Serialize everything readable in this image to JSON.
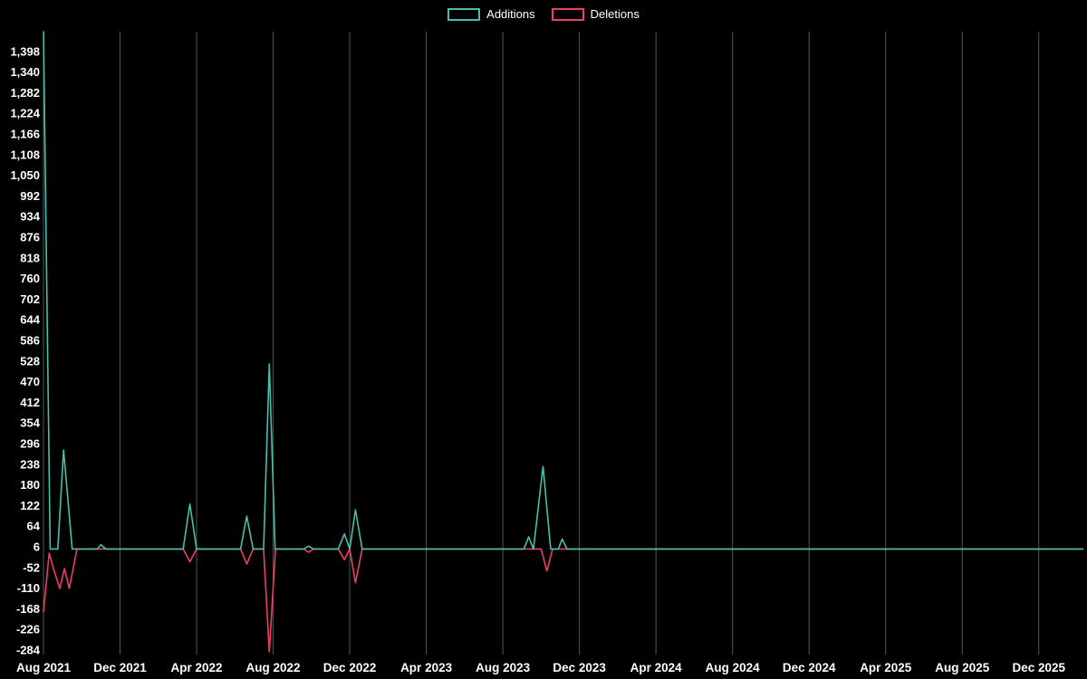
{
  "legend": {
    "additions_label": "Additions",
    "deletions_label": "Deletions"
  },
  "colors": {
    "background": "#000000",
    "text": "#ffffff",
    "gridline": "#4a5a57",
    "additions": "#46c0ad",
    "deletions": "#ee3f63"
  },
  "chart_data": {
    "type": "line",
    "title": "",
    "xlabel": "",
    "ylabel": "",
    "legend_position": "top-center",
    "grid": "vertical-only",
    "x_unit": "months since Aug 2021",
    "x_tick_months": [
      0,
      4,
      8,
      12,
      16,
      20,
      24,
      28,
      32,
      36,
      40,
      44,
      48,
      52
    ],
    "x_tick_labels": [
      "Aug 2021",
      "Dec 2021",
      "Apr 2022",
      "Aug 2022",
      "Dec 2022",
      "Apr 2023",
      "Aug 2023",
      "Dec 2023",
      "Apr 2024",
      "Aug 2024",
      "Dec 2024",
      "Apr 2025",
      "Aug 2025",
      "Dec 2025"
    ],
    "y_ticks": [
      1398,
      1340,
      1282,
      1224,
      1166,
      1108,
      1050,
      992,
      934,
      876,
      818,
      760,
      702,
      644,
      586,
      528,
      470,
      412,
      354,
      296,
      238,
      180,
      122,
      64,
      6,
      -52,
      -110,
      -168,
      -226,
      -284
    ],
    "ylim": [
      -295,
      1455
    ],
    "xlim": [
      0,
      54.3
    ],
    "series": [
      {
        "name": "Deletions",
        "color": "#ee3f63",
        "points": [
          [
            0,
            -177
          ],
          [
            0.3,
            -12
          ],
          [
            0.55,
            -60
          ],
          [
            0.85,
            -111
          ],
          [
            1.1,
            -55
          ],
          [
            1.35,
            -111
          ],
          [
            1.75,
            0
          ],
          [
            7.3,
            0
          ],
          [
            7.65,
            -36
          ],
          [
            8.0,
            0
          ],
          [
            10.3,
            0
          ],
          [
            10.62,
            -42
          ],
          [
            10.95,
            0
          ],
          [
            11.5,
            0
          ],
          [
            11.8,
            -292
          ],
          [
            12.12,
            0
          ],
          [
            13.6,
            0
          ],
          [
            13.85,
            -9
          ],
          [
            14.1,
            0
          ],
          [
            15.4,
            0
          ],
          [
            15.72,
            -30
          ],
          [
            16.0,
            0
          ],
          [
            16.3,
            -95
          ],
          [
            16.65,
            0
          ],
          [
            26.0,
            0
          ],
          [
            26.3,
            -62
          ],
          [
            26.6,
            0
          ],
          [
            54.3,
            0
          ]
        ]
      },
      {
        "name": "Additions",
        "color": "#46c0ad",
        "points": [
          [
            0,
            1455
          ],
          [
            0.35,
            0
          ],
          [
            0.75,
            0
          ],
          [
            1.05,
            278
          ],
          [
            1.5,
            0
          ],
          [
            2.8,
            0
          ],
          [
            3.0,
            12
          ],
          [
            3.25,
            0
          ],
          [
            7.3,
            0
          ],
          [
            7.65,
            126
          ],
          [
            8.0,
            0
          ],
          [
            10.3,
            0
          ],
          [
            10.62,
            92
          ],
          [
            10.95,
            0
          ],
          [
            11.5,
            0
          ],
          [
            11.8,
            520
          ],
          [
            12.1,
            0
          ],
          [
            13.6,
            0
          ],
          [
            13.85,
            8
          ],
          [
            14.1,
            0
          ],
          [
            15.4,
            0
          ],
          [
            15.72,
            42
          ],
          [
            16.0,
            0
          ],
          [
            16.3,
            110
          ],
          [
            16.65,
            0
          ],
          [
            25.1,
            0
          ],
          [
            25.35,
            34
          ],
          [
            25.6,
            0
          ],
          [
            26.1,
            232
          ],
          [
            26.5,
            0
          ],
          [
            26.9,
            0
          ],
          [
            27.1,
            28
          ],
          [
            27.35,
            0
          ],
          [
            54.3,
            0
          ]
        ]
      }
    ]
  }
}
